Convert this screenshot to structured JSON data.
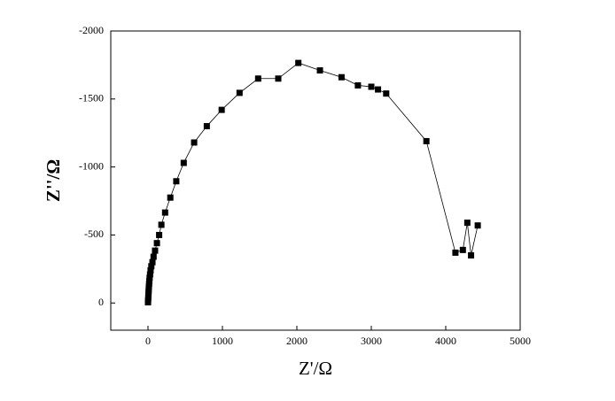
{
  "chart_data": {
    "type": "line",
    "x_label": "Z'/Ω",
    "y_label": "Z''/Ω",
    "series": [
      {
        "color": "#000000",
        "x": [
          0,
          2,
          4,
          6,
          8,
          10,
          12,
          15,
          18,
          22,
          28,
          35,
          45,
          60,
          75,
          95,
          120,
          150,
          180,
          230,
          300,
          380,
          480,
          620,
          790,
          990,
          1230,
          1480,
          1750,
          2020,
          2310,
          2600,
          2820,
          3000,
          3090,
          3200,
          3740,
          4130,
          4230,
          4290,
          4340,
          4430
        ],
        "values": [
          -5,
          -20,
          -40,
          -60,
          -80,
          -100,
          -120,
          -140,
          -160,
          -185,
          -210,
          -240,
          -270,
          -300,
          -340,
          -385,
          -440,
          -500,
          -575,
          -665,
          -775,
          -895,
          -1030,
          -1180,
          -1300,
          -1420,
          -1545,
          -1650,
          -1650,
          -1765,
          -1710,
          -1660,
          -1600,
          -1590,
          -1570,
          -1540,
          -1190,
          -370,
          -390,
          -590,
          -350,
          -570
        ]
      }
    ],
    "xlim": [
      -500,
      5000
    ],
    "xticks": [
      0,
      1000,
      2000,
      3000,
      4000,
      5000
    ],
    "ylim": [
      200,
      -2000
    ],
    "yticks": [
      0,
      -500,
      -1000,
      -1500,
      -2000
    ]
  }
}
